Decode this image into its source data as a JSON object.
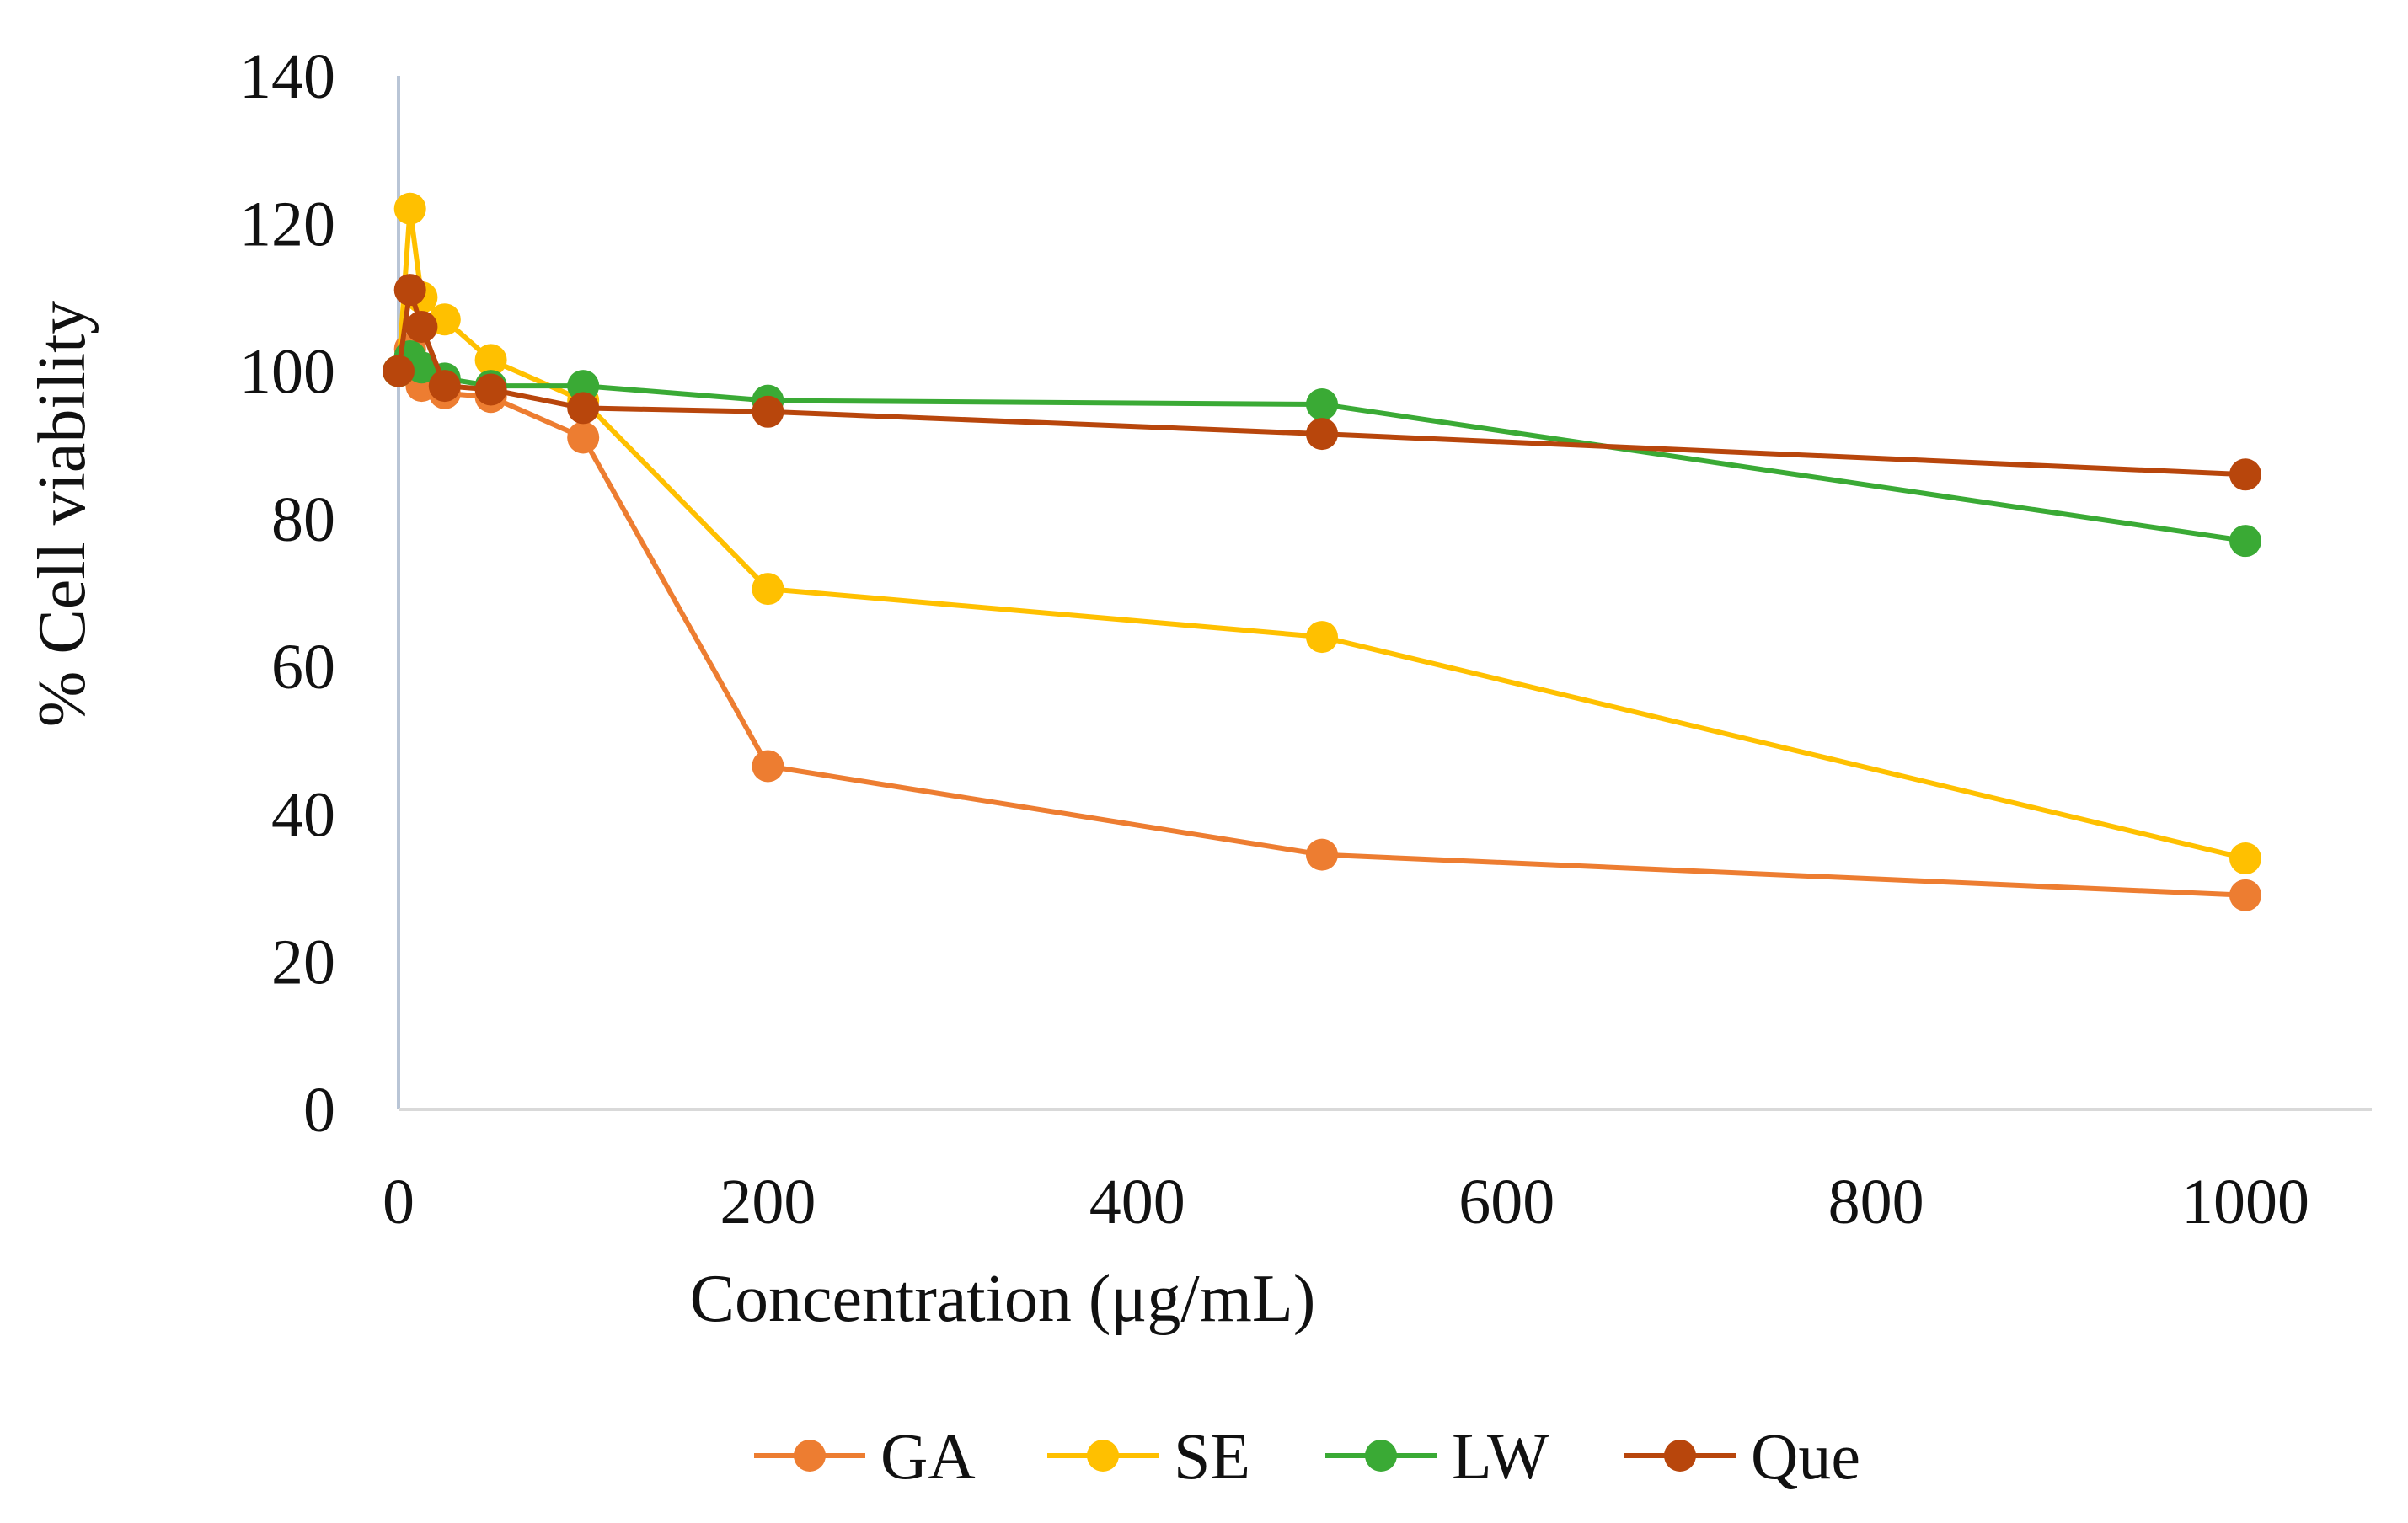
{
  "chart_data": {
    "type": "line",
    "title": "",
    "xlabel": "Concentration (μg/mL)",
    "ylabel": "% Cell viability",
    "xlim": [
      0,
      1000
    ],
    "ylim": [
      0,
      140
    ],
    "x_ticks": [
      0,
      200,
      400,
      600,
      800,
      1000
    ],
    "y_ticks": [
      0,
      20,
      40,
      60,
      80,
      100,
      120,
      140
    ],
    "grid": false,
    "legend_position": "bottom",
    "series": [
      {
        "name": "GA",
        "color": "#ED7D31",
        "x": [
          0,
          6.25,
          12.5,
          25,
          50,
          100,
          200,
          500,
          1000
        ],
        "y": [
          100,
          103,
          98,
          97,
          96.5,
          91,
          46.5,
          34.5,
          29
        ]
      },
      {
        "name": "SE",
        "color": "#FFC000",
        "x": [
          0,
          6.25,
          12.5,
          25,
          50,
          100,
          200,
          500,
          1000
        ],
        "y": [
          100,
          122,
          110,
          107,
          101.5,
          96,
          70.5,
          64,
          34
        ]
      },
      {
        "name": "LW",
        "color": "#3AAA35",
        "x": [
          0,
          6.25,
          12.5,
          25,
          50,
          100,
          200,
          500,
          1000
        ],
        "y": [
          100,
          102,
          100.5,
          99,
          98,
          98,
          96,
          95.5,
          77
        ]
      },
      {
        "name": "Que",
        "color": "#B8460C",
        "x": [
          0,
          6.25,
          12.5,
          25,
          50,
          100,
          200,
          500,
          1000
        ],
        "y": [
          100,
          111,
          106,
          98,
          97.5,
          95,
          94.5,
          91.5,
          86
        ]
      }
    ]
  }
}
